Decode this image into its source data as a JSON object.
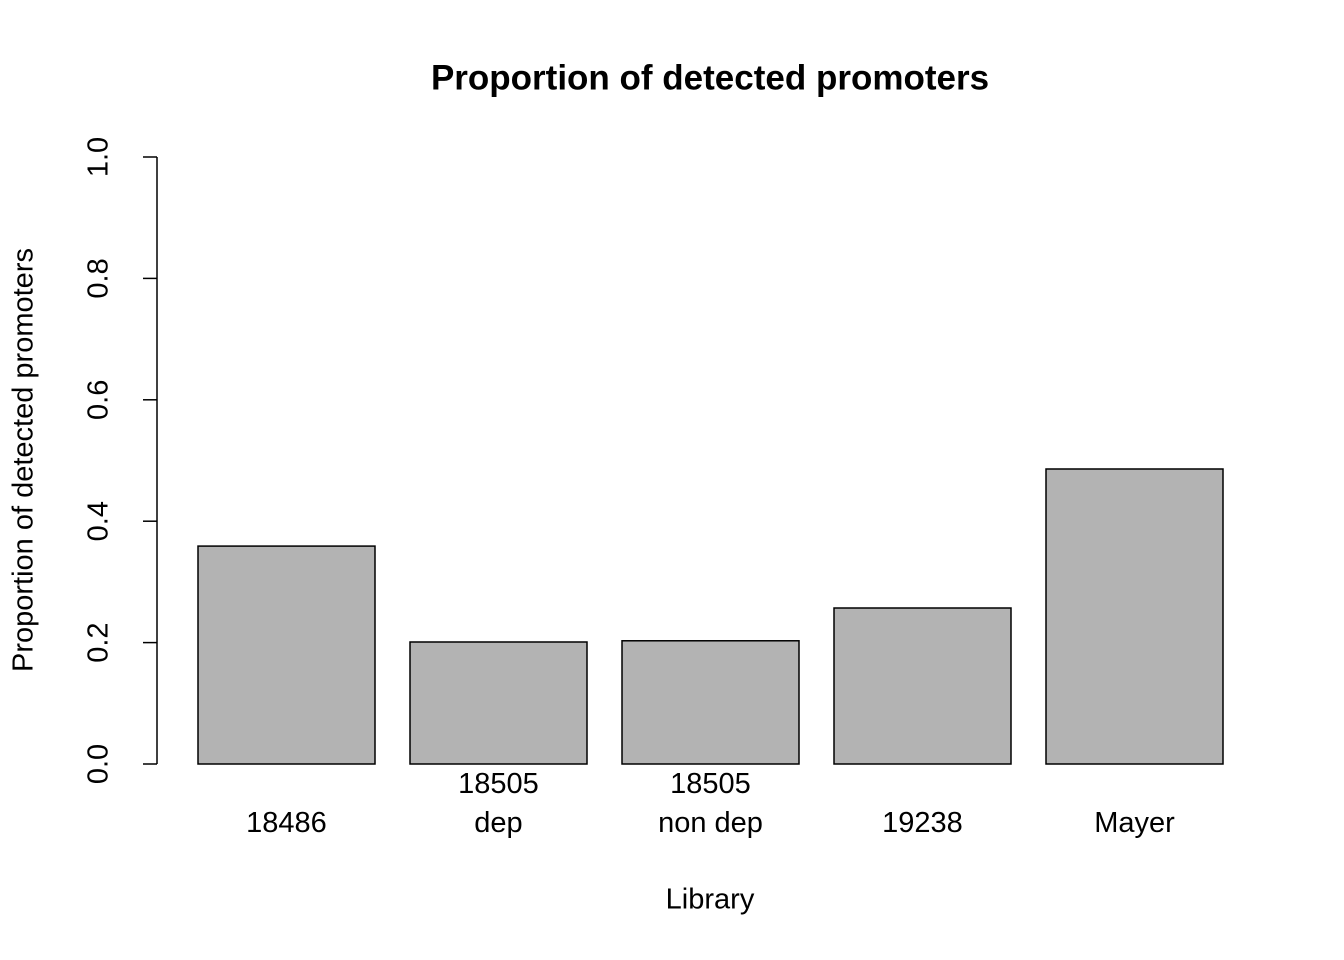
{
  "chart_data": {
    "type": "bar",
    "title": "Proportion of detected promoters",
    "x_label": "Library",
    "y_label": "Proportion of detected promoters",
    "categories": [
      "18486",
      "18505\ndep",
      "18505\nnon dep",
      "19238",
      "Mayer"
    ],
    "values": [
      0.359,
      0.201,
      0.203,
      0.257,
      0.486
    ],
    "color": "#b3b3b3",
    "ylim": [
      0,
      1
    ],
    "yticks": [
      {
        "value": 0,
        "label": "0.0"
      },
      0.2,
      0.4,
      0.6,
      0.8,
      {
        "value": 1,
        "label": "1.0"
      }
    ],
    "grid": false
  }
}
